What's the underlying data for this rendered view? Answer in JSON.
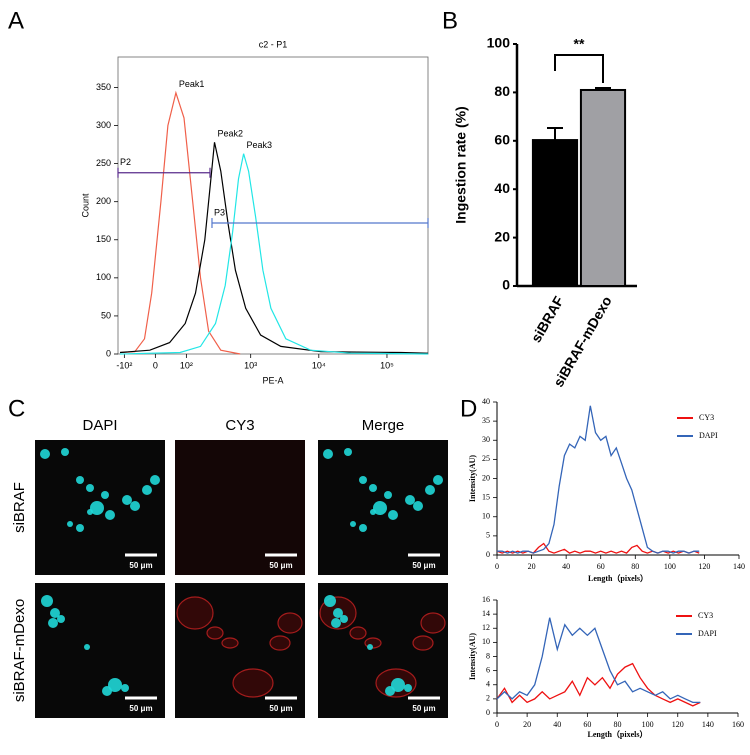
{
  "panel_labels": [
    "A",
    "B",
    "C",
    "D"
  ],
  "chart_data": [
    {
      "type": "line",
      "title": "c2 - P1",
      "xlabel": "PE-A",
      "ylabel": "Count",
      "xscale": "biexponential",
      "xlim": [
        -130,
        400000
      ],
      "ylim": [
        0,
        390
      ],
      "xticks": [
        {
          "value": -100,
          "label": "-10²"
        },
        0,
        {
          "value": 100,
          "label": "10²"
        },
        {
          "value": 1000,
          "label": "10³"
        },
        {
          "value": 10000,
          "label": "10⁴"
        },
        {
          "value": 100000,
          "label": "10⁵"
        }
      ],
      "yticks": [
        0,
        50,
        100,
        150,
        200,
        250,
        300,
        350
      ],
      "series": [
        {
          "name": "Peak1",
          "color": "#f0604a",
          "x": [
            -120,
            -60,
            -30,
            -10,
            15,
            35,
            60,
            90,
            130,
            175,
            235,
            360,
            700
          ],
          "values": [
            2,
            3,
            20,
            80,
            200,
            300,
            343,
            310,
            200,
            100,
            30,
            5,
            0
          ]
        },
        {
          "name": "Peak2",
          "color": "#000000",
          "x": [
            -120,
            -15,
            40,
            95,
            145,
            205,
            255,
            290,
            360,
            465,
            595,
            845,
            1400,
            2770,
            10700,
            160000,
            400000
          ],
          "values": [
            2,
            5,
            15,
            40,
            80,
            150,
            230,
            278,
            240,
            170,
            110,
            60,
            25,
            10,
            3,
            2,
            1
          ]
        },
        {
          "name": "Peak3",
          "color": "#22e6e6",
          "x": [
            -120,
            75,
            175,
            300,
            420,
            540,
            660,
            785,
            930,
            1180,
            1510,
            1980,
            3280,
            7600,
            29600,
            400000
          ],
          "values": [
            0,
            2,
            10,
            40,
            90,
            160,
            230,
            263,
            240,
            180,
            110,
            60,
            20,
            5,
            1,
            0
          ]
        }
      ],
      "gates": [
        {
          "name": "P2",
          "color": "#5a2d8c",
          "x": [
            -130,
            247
          ],
          "y": 238
        },
        {
          "name": "P3",
          "color": "#5577cc",
          "x": [
            265,
            400000
          ],
          "y": 172
        }
      ]
    },
    {
      "type": "bar",
      "ylabel": "Ingestion rate (%)",
      "categories": [
        "siBRAF",
        "siBRAF-mDexo"
      ],
      "values": [
        60.3,
        81.0
      ],
      "errors": [
        5.0,
        0.8
      ],
      "colors": [
        "#000000",
        "#a0a0a4"
      ],
      "ylim": [
        0,
        100
      ],
      "yticks": [
        0,
        20,
        40,
        60,
        80,
        100
      ],
      "annotation": "**"
    },
    {
      "type": "line",
      "xlabel": "Length（pixels）",
      "ylabel": "Intensity(AU)",
      "legend": "upper right",
      "xlim": [
        0,
        140
      ],
      "ylim": [
        0,
        40
      ],
      "xticks": [
        0,
        20,
        40,
        60,
        80,
        100,
        120,
        140
      ],
      "yticks": [
        0,
        5,
        10,
        15,
        20,
        25,
        30,
        35,
        40
      ],
      "x": [
        0,
        3,
        6,
        9,
        12,
        15,
        18,
        21,
        24,
        27,
        30,
        33,
        36,
        39,
        42,
        45,
        48,
        51,
        54,
        57,
        60,
        63,
        66,
        69,
        72,
        75,
        78,
        81,
        84,
        87,
        90,
        93,
        96,
        99,
        102,
        105,
        108,
        111,
        114,
        117
      ],
      "series": [
        {
          "name": "CY3",
          "color": "#ee1111",
          "values": [
            1,
            0.5,
            1,
            0.5,
            1,
            0.5,
            1,
            0.5,
            2,
            3,
            1,
            0.5,
            1,
            1.5,
            0.5,
            1,
            0.5,
            1,
            1,
            0.5,
            1,
            0.5,
            1,
            0.5,
            1,
            0.5,
            2,
            2.5,
            1,
            0.5,
            1,
            0.5,
            1,
            0.5,
            1,
            0.5,
            1,
            0.5,
            1,
            0.5
          ]
        },
        {
          "name": "DAPI",
          "color": "#3465b8",
          "values": [
            1,
            1,
            0.5,
            1,
            0.5,
            1,
            1,
            0.5,
            1,
            1.5,
            3,
            8,
            18,
            26,
            29,
            28,
            31,
            30,
            39,
            32,
            30,
            31,
            26,
            28,
            24,
            20,
            17,
            12,
            7,
            2,
            1,
            0.5,
            1,
            1,
            0.5,
            1,
            1,
            0.5,
            1,
            1
          ]
        }
      ]
    },
    {
      "type": "line",
      "xlabel": "Length（pixels）",
      "ylabel": "Intensity(AU)",
      "legend": "upper right",
      "xlim": [
        0,
        160
      ],
      "ylim": [
        0,
        16
      ],
      "xticks": [
        0,
        20,
        40,
        60,
        80,
        100,
        120,
        140,
        160
      ],
      "yticks": [
        0,
        2,
        4,
        6,
        8,
        10,
        12,
        14,
        16
      ],
      "x": [
        0,
        5,
        10,
        15,
        20,
        25,
        30,
        35,
        40,
        45,
        50,
        55,
        60,
        65,
        70,
        75,
        80,
        85,
        90,
        95,
        100,
        105,
        110,
        115,
        120,
        125,
        130,
        135
      ],
      "series": [
        {
          "name": "CY3",
          "color": "#ee1111",
          "values": [
            2,
            3.5,
            1.5,
            2.5,
            1.5,
            2,
            3,
            2,
            2.5,
            3,
            4.5,
            2.5,
            5,
            4,
            5,
            3.5,
            5.5,
            6.5,
            7,
            5,
            3.5,
            2.5,
            2,
            1.5,
            2,
            1.5,
            1,
            1.5
          ]
        },
        {
          "name": "DAPI",
          "color": "#3465b8",
          "values": [
            2,
            3,
            2,
            3,
            2.5,
            4,
            8,
            13.5,
            9,
            12.5,
            11,
            12,
            11,
            12,
            9,
            6,
            4,
            4.5,
            3,
            3.5,
            3,
            2.5,
            3,
            2,
            2.5,
            2,
            1.5,
            1.5
          ]
        }
      ]
    }
  ],
  "panel_c": {
    "columns": [
      "DAPI",
      "CY3",
      "Merge"
    ],
    "rows": [
      "siBRAF",
      "siBRAF-mDexo"
    ],
    "scale_bar": "50 μm"
  }
}
